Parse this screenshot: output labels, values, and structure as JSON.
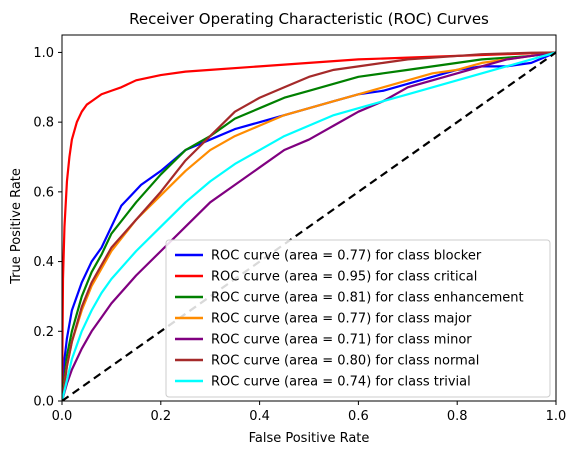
{
  "chart_data": {
    "type": "line",
    "title": "Receiver Operating Characteristic (ROC) Curves",
    "xlabel": "False Positive Rate",
    "ylabel": "True Positive Rate",
    "xlim": [
      0.0,
      1.0
    ],
    "ylim": [
      0.0,
      1.05
    ],
    "x_ticks": [
      "0.0",
      "0.2",
      "0.4",
      "0.6",
      "0.8",
      "1.0"
    ],
    "y_ticks": [
      "0.0",
      "0.2",
      "0.4",
      "0.6",
      "0.8",
      "1.0"
    ],
    "grid": false,
    "legend_position": "lower-right",
    "series": [
      {
        "name": "ROC curve (area = 0.77) for class blocker",
        "color": "#0000ff",
        "x": [
          0,
          0.005,
          0.01,
          0.02,
          0.04,
          0.06,
          0.08,
          0.1,
          0.12,
          0.14,
          0.16,
          0.2,
          0.25,
          0.3,
          0.35,
          0.4,
          0.45,
          0.5,
          0.55,
          0.6,
          0.65,
          0.7,
          0.75,
          0.8,
          0.85,
          0.9,
          0.95,
          1.0
        ],
        "y": [
          0,
          0.12,
          0.18,
          0.26,
          0.34,
          0.4,
          0.44,
          0.5,
          0.56,
          0.59,
          0.62,
          0.66,
          0.72,
          0.75,
          0.78,
          0.8,
          0.82,
          0.84,
          0.86,
          0.88,
          0.89,
          0.91,
          0.93,
          0.95,
          0.96,
          0.96,
          0.97,
          1.0
        ]
      },
      {
        "name": "ROC curve (area = 0.95) for class critical",
        "color": "#ff0000",
        "x": [
          0,
          0.002,
          0.005,
          0.01,
          0.015,
          0.02,
          0.03,
          0.04,
          0.05,
          0.06,
          0.08,
          0.1,
          0.12,
          0.15,
          0.2,
          0.25,
          0.3,
          0.4,
          0.5,
          0.6,
          0.7,
          0.8,
          0.9,
          1.0
        ],
        "y": [
          0,
          0.35,
          0.5,
          0.63,
          0.7,
          0.75,
          0.8,
          0.83,
          0.85,
          0.86,
          0.88,
          0.89,
          0.9,
          0.92,
          0.935,
          0.945,
          0.95,
          0.96,
          0.97,
          0.98,
          0.985,
          0.99,
          0.995,
          1.0
        ]
      },
      {
        "name": "ROC curve (area = 0.81) for class enhancement",
        "color": "#008000",
        "x": [
          0,
          0.01,
          0.02,
          0.04,
          0.06,
          0.08,
          0.1,
          0.15,
          0.2,
          0.25,
          0.3,
          0.35,
          0.4,
          0.45,
          0.5,
          0.55,
          0.6,
          0.65,
          0.7,
          0.75,
          0.8,
          0.85,
          0.9,
          0.95,
          1.0
        ],
        "y": [
          0,
          0.13,
          0.2,
          0.3,
          0.37,
          0.42,
          0.48,
          0.57,
          0.65,
          0.72,
          0.76,
          0.81,
          0.84,
          0.87,
          0.89,
          0.91,
          0.93,
          0.94,
          0.95,
          0.96,
          0.97,
          0.98,
          0.985,
          0.99,
          1.0
        ]
      },
      {
        "name": "ROC curve (area = 0.77) for class major",
        "color": "#ff8c00",
        "x": [
          0,
          0.01,
          0.02,
          0.04,
          0.06,
          0.08,
          0.1,
          0.15,
          0.2,
          0.25,
          0.3,
          0.35,
          0.4,
          0.45,
          0.5,
          0.55,
          0.6,
          0.65,
          0.7,
          0.75,
          0.8,
          0.85,
          0.9,
          0.95,
          1.0
        ],
        "y": [
          0,
          0.1,
          0.17,
          0.26,
          0.33,
          0.38,
          0.43,
          0.52,
          0.59,
          0.66,
          0.72,
          0.76,
          0.79,
          0.82,
          0.84,
          0.86,
          0.88,
          0.9,
          0.92,
          0.94,
          0.95,
          0.97,
          0.98,
          0.99,
          1.0
        ]
      },
      {
        "name": "ROC curve (area = 0.71) for class minor",
        "color": "#800080",
        "x": [
          0,
          0.01,
          0.02,
          0.04,
          0.06,
          0.08,
          0.1,
          0.15,
          0.2,
          0.25,
          0.3,
          0.35,
          0.4,
          0.45,
          0.5,
          0.55,
          0.6,
          0.65,
          0.7,
          0.75,
          0.8,
          0.85,
          0.9,
          0.95,
          1.0
        ],
        "y": [
          0,
          0.05,
          0.09,
          0.15,
          0.2,
          0.24,
          0.28,
          0.36,
          0.43,
          0.5,
          0.57,
          0.62,
          0.67,
          0.72,
          0.75,
          0.79,
          0.83,
          0.86,
          0.9,
          0.92,
          0.94,
          0.96,
          0.98,
          0.99,
          1.0
        ]
      },
      {
        "name": "ROC curve (area = 0.80) for class normal",
        "color": "#a52a2a",
        "x": [
          0,
          0.01,
          0.02,
          0.04,
          0.06,
          0.08,
          0.1,
          0.15,
          0.2,
          0.25,
          0.3,
          0.35,
          0.4,
          0.45,
          0.5,
          0.55,
          0.6,
          0.65,
          0.7,
          0.75,
          0.8,
          0.85,
          0.9,
          0.95,
          1.0
        ],
        "y": [
          0,
          0.1,
          0.17,
          0.27,
          0.34,
          0.39,
          0.44,
          0.52,
          0.6,
          0.69,
          0.76,
          0.83,
          0.87,
          0.9,
          0.93,
          0.95,
          0.96,
          0.97,
          0.98,
          0.985,
          0.99,
          0.995,
          0.997,
          0.999,
          1.0
        ]
      },
      {
        "name": "ROC curve (area = 0.74) for class trivial",
        "color": "#00ffff",
        "x": [
          0,
          0.01,
          0.02,
          0.04,
          0.06,
          0.08,
          0.1,
          0.15,
          0.2,
          0.25,
          0.3,
          0.35,
          0.4,
          0.45,
          0.5,
          0.55,
          0.6,
          0.65,
          0.7,
          0.75,
          0.8,
          0.85,
          0.9,
          0.95,
          1.0
        ],
        "y": [
          0,
          0.06,
          0.12,
          0.2,
          0.26,
          0.31,
          0.35,
          0.43,
          0.5,
          0.57,
          0.63,
          0.68,
          0.72,
          0.76,
          0.79,
          0.82,
          0.84,
          0.86,
          0.88,
          0.9,
          0.92,
          0.94,
          0.96,
          0.98,
          1.0
        ]
      }
    ],
    "reference_line": {
      "style": "dashed",
      "color": "#000000",
      "x": [
        0,
        1
      ],
      "y": [
        0,
        1
      ]
    }
  }
}
